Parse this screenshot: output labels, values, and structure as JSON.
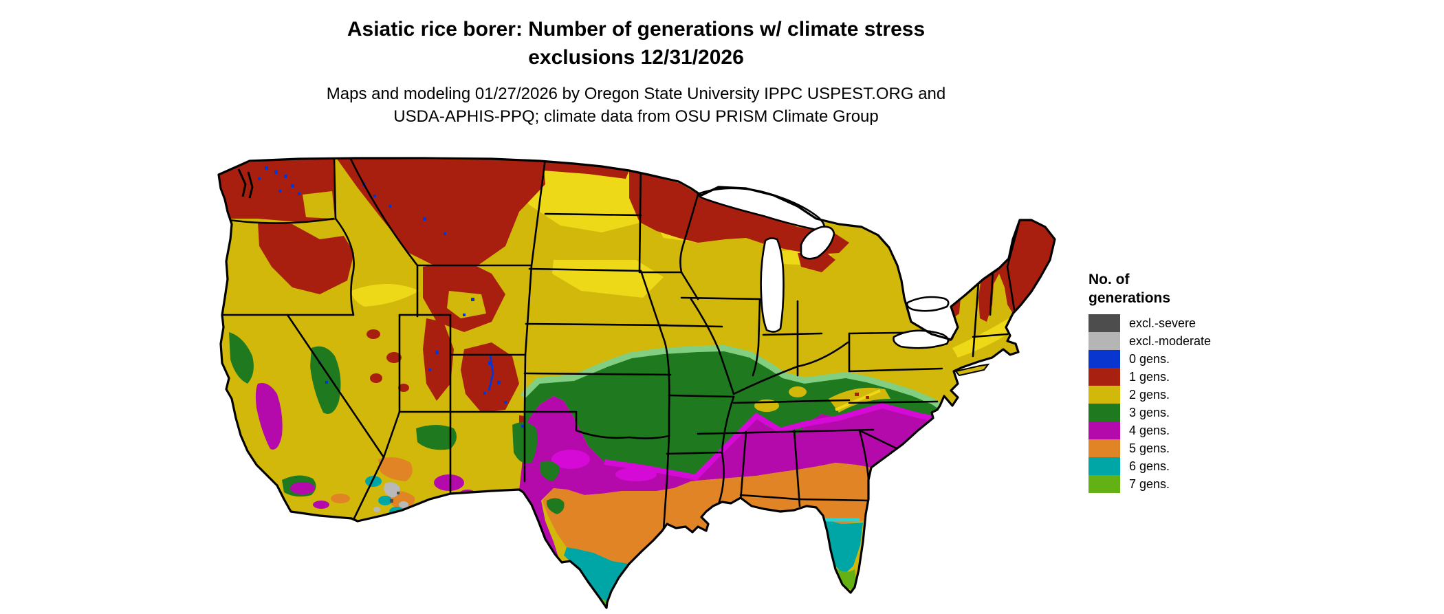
{
  "title": {
    "line1": "Asiatic rice borer: Number of generations w/ climate stress",
    "line2": "exclusions 12/31/2026"
  },
  "subtitle": {
    "line1": "Maps and modeling 01/27/2026 by Oregon State University IPPC USPEST.ORG and",
    "line2": "USDA-APHIS-PPQ; climate data from OSU PRISM Climate Group"
  },
  "legend": {
    "title_line1": "No. of",
    "title_line2": "generations",
    "items": [
      {
        "label": "excl.-severe",
        "color": "#4d4d4d"
      },
      {
        "label": "excl.-moderate",
        "color": "#b5b5b5"
      },
      {
        "label": "0 gens.",
        "color": "#0a36d0"
      },
      {
        "label": "1 gens.",
        "color": "#a82010"
      },
      {
        "label": "2 gens.",
        "color": "#d2b80a"
      },
      {
        "label": "3 gens.",
        "color": "#1f7a1f"
      },
      {
        "label": "4 gens.",
        "color": "#b40aac"
      },
      {
        "label": "5 gens.",
        "color": "#e08426"
      },
      {
        "label": "6 gens.",
        "color": "#00a6a6"
      },
      {
        "label": "7 gens.",
        "color": "#64b116"
      }
    ]
  },
  "map": {
    "region": "Continental United States",
    "ocean_color": "#ffffff",
    "boundary_color": "#000000",
    "class_colors": {
      "excl_severe": "#4d4d4d",
      "excl_moderate": "#b9b9b9",
      "gens0": "#0a36d0",
      "gens1": "#a81f10",
      "gens2": "#d2b80a",
      "gens2_light": "#eed919",
      "gens3": "#1f7a1f",
      "gens3_light": "#82cf82",
      "gens4": "#b40aac",
      "gens4_bright": "#d60ad6",
      "gens5": "#e08426",
      "gens6": "#00a6a6",
      "gens6_bright": "#2bd4d4",
      "gens7": "#64b116",
      "lake": "#ffffff"
    }
  }
}
